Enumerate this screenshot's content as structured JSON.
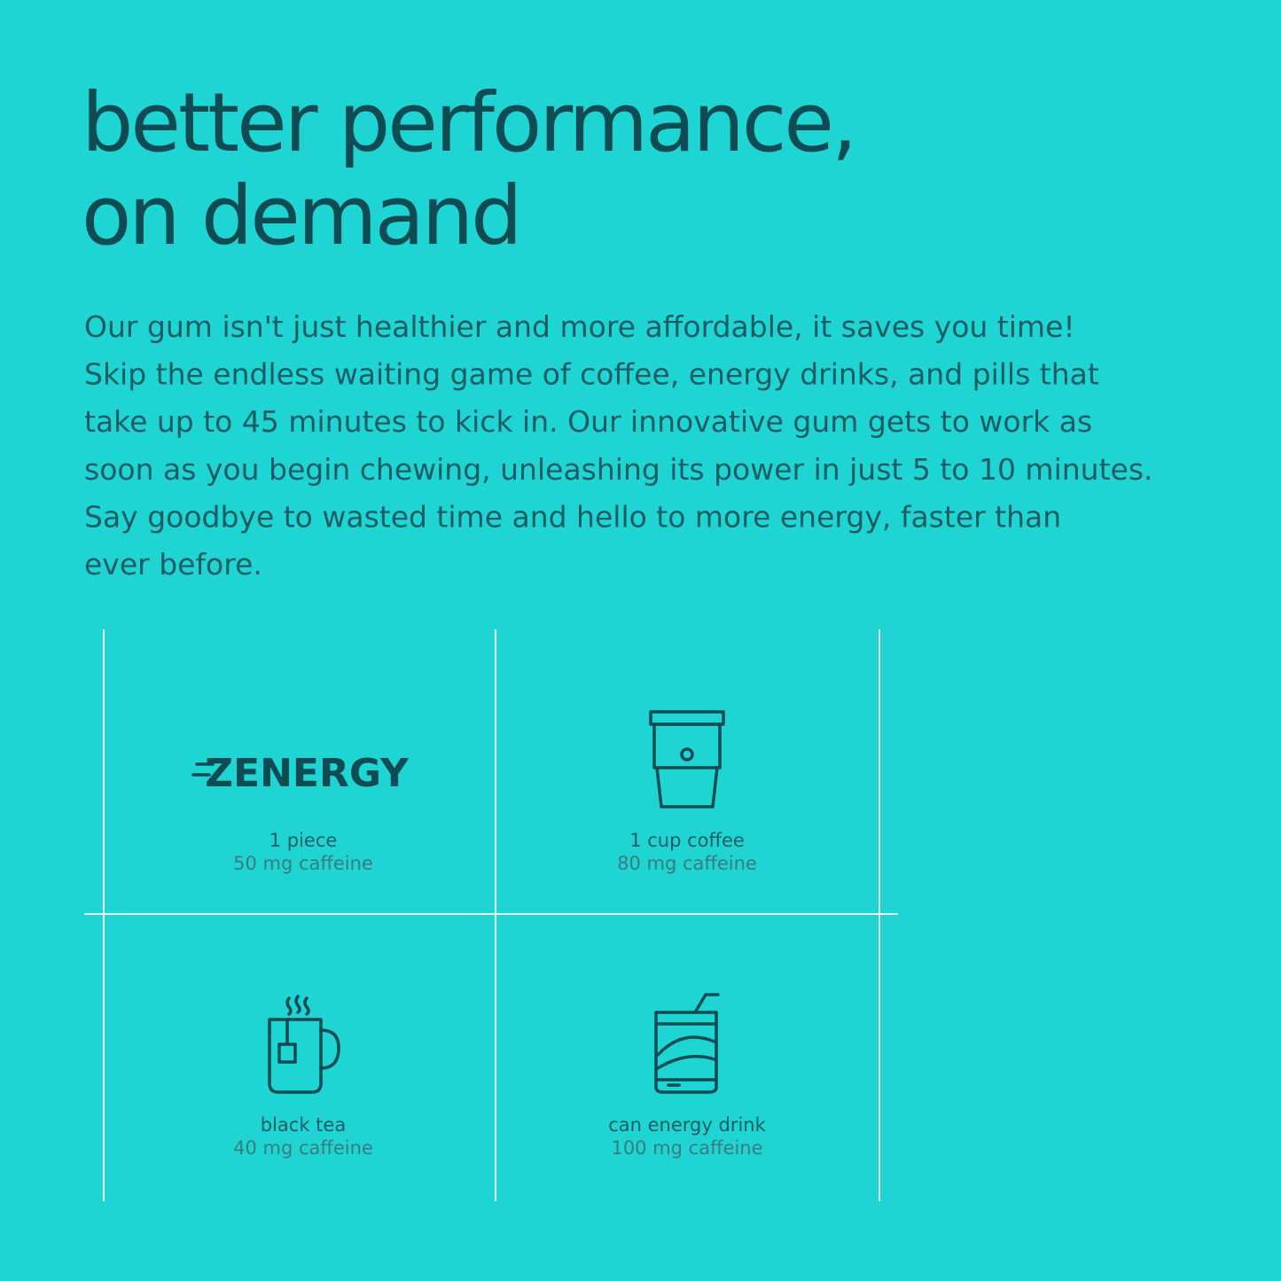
{
  "header": {
    "title_lines": [
      "better performance,",
      "on demand"
    ]
  },
  "body": {
    "lines": [
      "Our gum isn't just healthier and more affordable, it saves you time!",
      "Skip the endless waiting game of coffee, energy drinks, and pills that",
      "take up to 45 minutes to kick in. Our innovative gum gets to work as",
      "soon as you begin chewing, unleashing its power in just 5 to 10 minutes.",
      "Say goodbye to wasted time and hello to more energy, faster than",
      "ever before."
    ]
  },
  "comparison": {
    "logo": "ZENERGY",
    "items": [
      {
        "name": "1 piece",
        "caption": "50 mg caffeine"
      },
      {
        "name": "1 cup coffee",
        "caption": "80 mg caffeine"
      },
      {
        "name": "black tea",
        "caption": "40 mg caffeine"
      },
      {
        "name": "can energy drink",
        "caption": "100 mg caffeine"
      }
    ]
  }
}
